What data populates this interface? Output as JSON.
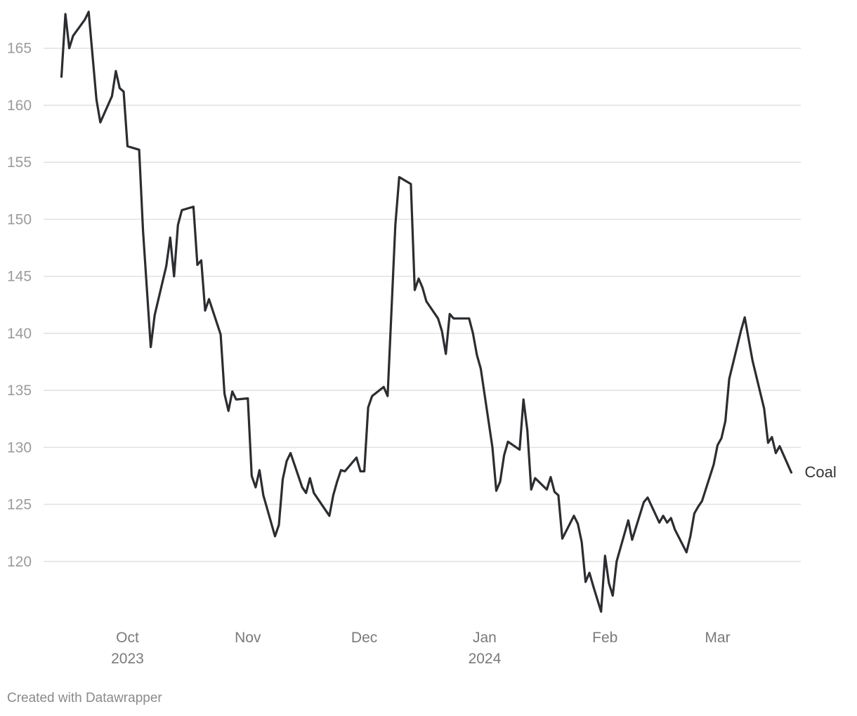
{
  "chart_data": {
    "type": "line",
    "title": "",
    "xlabel": "",
    "ylabel": "",
    "x_range": [
      "2023-09-13",
      "2024-03-19"
    ],
    "ylim": [
      115,
      168
    ],
    "y_ticks": [
      120,
      125,
      130,
      135,
      140,
      145,
      150,
      155,
      160,
      165
    ],
    "x_ticks": [
      {
        "date": "2023-10-01",
        "label": "Oct",
        "sublabel": "2023"
      },
      {
        "date": "2023-11-01",
        "label": "Nov",
        "sublabel": ""
      },
      {
        "date": "2023-12-01",
        "label": "Dec",
        "sublabel": ""
      },
      {
        "date": "2024-01-01",
        "label": "Jan",
        "sublabel": "2024"
      },
      {
        "date": "2024-02-01",
        "label": "Feb",
        "sublabel": ""
      },
      {
        "date": "2024-03-01",
        "label": "Mar",
        "sublabel": ""
      }
    ],
    "grid": true,
    "colors": {
      "line": "#2b2d30",
      "grid": "#e1e1e1"
    },
    "series": [
      {
        "name": "Coal",
        "points": [
          [
            "2023-09-14",
            162.5
          ],
          [
            "2023-09-15",
            168.0
          ],
          [
            "2023-09-16",
            165.0
          ],
          [
            "2023-09-17",
            166.1
          ],
          [
            "2023-09-20",
            167.5
          ],
          [
            "2023-09-21",
            168.2
          ],
          [
            "2023-09-23",
            160.5
          ],
          [
            "2023-09-24",
            158.5
          ],
          [
            "2023-09-27",
            160.8
          ],
          [
            "2023-09-28",
            163.0
          ],
          [
            "2023-09-29",
            161.5
          ],
          [
            "2023-09-30",
            161.2
          ],
          [
            "2023-10-01",
            156.4
          ],
          [
            "2023-10-04",
            156.1
          ],
          [
            "2023-10-05",
            149.0
          ],
          [
            "2023-10-07",
            138.8
          ],
          [
            "2023-10-08",
            141.6
          ],
          [
            "2023-10-11",
            145.9
          ],
          [
            "2023-10-12",
            148.4
          ],
          [
            "2023-10-13",
            145.0
          ],
          [
            "2023-10-14",
            149.5
          ],
          [
            "2023-10-15",
            150.8
          ],
          [
            "2023-10-18",
            151.1
          ],
          [
            "2023-10-19",
            146.0
          ],
          [
            "2023-10-20",
            146.4
          ],
          [
            "2023-10-21",
            142.0
          ],
          [
            "2023-10-22",
            143.0
          ],
          [
            "2023-10-25",
            139.9
          ],
          [
            "2023-10-26",
            134.7
          ],
          [
            "2023-10-27",
            133.2
          ],
          [
            "2023-10-28",
            134.9
          ],
          [
            "2023-10-29",
            134.2
          ],
          [
            "2023-11-01",
            134.3
          ],
          [
            "2023-11-02",
            127.5
          ],
          [
            "2023-11-03",
            126.5
          ],
          [
            "2023-11-04",
            128.0
          ],
          [
            "2023-11-05",
            125.8
          ],
          [
            "2023-11-08",
            122.2
          ],
          [
            "2023-11-09",
            123.2
          ],
          [
            "2023-11-10",
            127.2
          ],
          [
            "2023-11-11",
            128.8
          ],
          [
            "2023-11-12",
            129.5
          ],
          [
            "2023-11-15",
            126.5
          ],
          [
            "2023-11-16",
            126.0
          ],
          [
            "2023-11-17",
            127.3
          ],
          [
            "2023-11-18",
            126.0
          ],
          [
            "2023-11-22",
            124.0
          ],
          [
            "2023-11-23",
            125.8
          ],
          [
            "2023-11-24",
            127.0
          ],
          [
            "2023-11-25",
            128.0
          ],
          [
            "2023-11-26",
            127.9
          ],
          [
            "2023-11-29",
            129.1
          ],
          [
            "2023-11-30",
            127.9
          ],
          [
            "2023-12-01",
            127.9
          ],
          [
            "2023-12-02",
            133.5
          ],
          [
            "2023-12-03",
            134.5
          ],
          [
            "2023-12-06",
            135.3
          ],
          [
            "2023-12-07",
            134.5
          ],
          [
            "2023-12-08",
            142.0
          ],
          [
            "2023-12-09",
            149.5
          ],
          [
            "2023-12-10",
            153.7
          ],
          [
            "2023-12-13",
            153.1
          ],
          [
            "2023-12-14",
            143.8
          ],
          [
            "2023-12-15",
            144.8
          ],
          [
            "2023-12-16",
            144.0
          ],
          [
            "2023-12-17",
            142.8
          ],
          [
            "2023-12-20",
            141.3
          ],
          [
            "2023-12-21",
            140.2
          ],
          [
            "2023-12-22",
            138.2
          ],
          [
            "2023-12-23",
            141.7
          ],
          [
            "2023-12-24",
            141.3
          ],
          [
            "2023-12-28",
            141.3
          ],
          [
            "2023-12-29",
            140.0
          ],
          [
            "2023-12-30",
            138.1
          ],
          [
            "2023-12-31",
            136.9
          ],
          [
            "2024-01-03",
            130.0
          ],
          [
            "2024-01-04",
            126.2
          ],
          [
            "2024-01-05",
            127.0
          ],
          [
            "2024-01-06",
            129.3
          ],
          [
            "2024-01-07",
            130.5
          ],
          [
            "2024-01-10",
            129.8
          ],
          [
            "2024-01-11",
            134.2
          ],
          [
            "2024-01-12",
            131.5
          ],
          [
            "2024-01-13",
            126.3
          ],
          [
            "2024-01-14",
            127.3
          ],
          [
            "2024-01-17",
            126.3
          ],
          [
            "2024-01-18",
            127.4
          ],
          [
            "2024-01-19",
            126.1
          ],
          [
            "2024-01-20",
            125.8
          ],
          [
            "2024-01-21",
            122.0
          ],
          [
            "2024-01-24",
            124.0
          ],
          [
            "2024-01-25",
            123.3
          ],
          [
            "2024-01-26",
            121.7
          ],
          [
            "2024-01-27",
            118.2
          ],
          [
            "2024-01-28",
            119.0
          ],
          [
            "2024-01-29",
            117.8
          ],
          [
            "2024-01-31",
            115.6
          ],
          [
            "2024-02-01",
            120.5
          ],
          [
            "2024-02-02",
            118.1
          ],
          [
            "2024-02-03",
            117.0
          ],
          [
            "2024-02-04",
            120.0
          ],
          [
            "2024-02-07",
            123.6
          ],
          [
            "2024-02-08",
            121.9
          ],
          [
            "2024-02-11",
            125.2
          ],
          [
            "2024-02-12",
            125.6
          ],
          [
            "2024-02-15",
            123.4
          ],
          [
            "2024-02-16",
            124.0
          ],
          [
            "2024-02-17",
            123.4
          ],
          [
            "2024-02-18",
            123.8
          ],
          [
            "2024-02-19",
            122.8
          ],
          [
            "2024-02-22",
            120.8
          ],
          [
            "2024-02-23",
            122.2
          ],
          [
            "2024-02-24",
            124.2
          ],
          [
            "2024-02-25",
            124.8
          ],
          [
            "2024-02-26",
            125.3
          ],
          [
            "2024-02-29",
            128.5
          ],
          [
            "2024-03-01",
            130.2
          ],
          [
            "2024-03-02",
            130.8
          ],
          [
            "2024-03-03",
            132.3
          ],
          [
            "2024-03-04",
            136.0
          ],
          [
            "2024-03-07",
            140.2
          ],
          [
            "2024-03-08",
            141.4
          ],
          [
            "2024-03-09",
            139.5
          ],
          [
            "2024-03-10",
            137.6
          ],
          [
            "2024-03-13",
            133.4
          ],
          [
            "2024-03-14",
            130.4
          ],
          [
            "2024-03-15",
            130.9
          ],
          [
            "2024-03-16",
            129.5
          ],
          [
            "2024-03-17",
            130.1
          ],
          [
            "2024-03-20",
            127.8
          ]
        ]
      }
    ]
  },
  "footer": {
    "credit": "Created with Datawrapper"
  }
}
